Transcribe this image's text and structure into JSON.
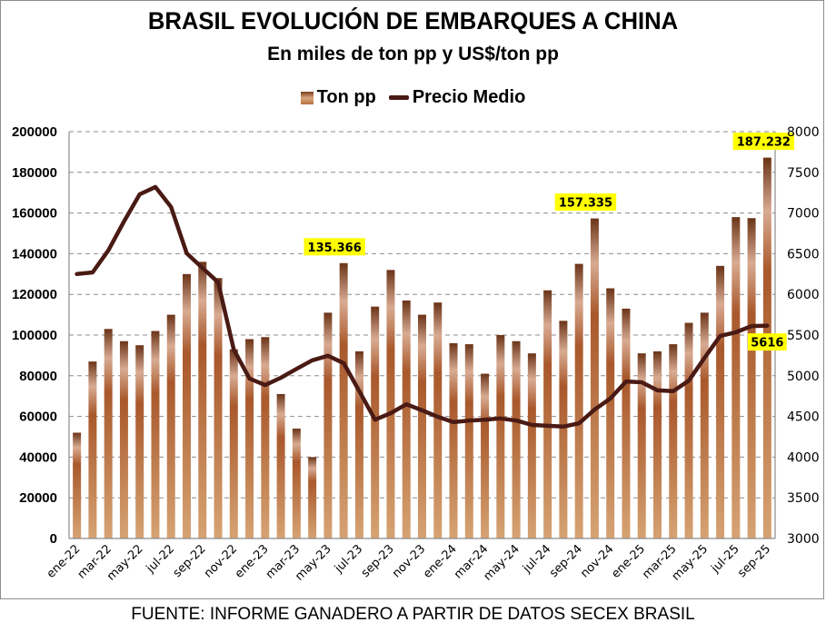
{
  "chart_data": {
    "type": "bar",
    "title": "BRASIL EVOLUCIÓN DE EMBARQUES A CHINA",
    "subtitle": "En miles de ton pp y US$/ton pp",
    "source": "FUENTE: INFORME GANADERO A PARTIR DE DATOS SECEX BRASIL",
    "legend": {
      "position": "top",
      "entries": [
        {
          "name": "Ton pp",
          "kind": "bar"
        },
        {
          "name": "Precio Medio",
          "kind": "line"
        }
      ]
    },
    "colors": {
      "bar_top": "#6b3418",
      "bar_mid_light": "#d8ab92",
      "bar_mid_dark": "#a9582b",
      "bar_bottom": "#d6a373",
      "line": "#4a1a14",
      "label_bg": "#ffff00",
      "grid": "#8c8c8c"
    },
    "categories": [
      "ene-22",
      "feb-22",
      "mar-22",
      "abr-22",
      "may-22",
      "jun-22",
      "jul-22",
      "ago-22",
      "sep-22",
      "oct-22",
      "nov-22",
      "dic-22",
      "ene-23",
      "feb-23",
      "mar-23",
      "abr-23",
      "may-23",
      "jun-23",
      "jul-23",
      "ago-23",
      "sep-23",
      "oct-23",
      "nov-23",
      "dic-23",
      "ene-24",
      "feb-24",
      "mar-24",
      "abr-24",
      "may-24",
      "jun-24",
      "jul-24",
      "ago-24",
      "sep-24",
      "oct-24",
      "nov-24",
      "dic-24",
      "ene-25",
      "feb-25",
      "mar-25",
      "abr-25",
      "may-25",
      "jun-25",
      "jul-25",
      "ago-25",
      "sep-25"
    ],
    "x_tick_labels": [
      "ene-22",
      "mar-22",
      "may-22",
      "jul-22",
      "sep-22",
      "nov-22",
      "ene-23",
      "mar-23",
      "may-23",
      "jul-23",
      "sep-23",
      "nov-23",
      "ene-24",
      "mar-24",
      "may-24",
      "jul-24",
      "sep-24",
      "nov-24",
      "ene-25",
      "mar-25",
      "may-25",
      "jul-25",
      "sep-25"
    ],
    "series": [
      {
        "name": "Ton pp",
        "type": "bar",
        "axis": "left",
        "values": [
          52000,
          87000,
          103000,
          97000,
          95000,
          102000,
          110000,
          130000,
          136000,
          128000,
          93000,
          98000,
          99000,
          71000,
          54000,
          40000,
          111000,
          135366,
          92000,
          114000,
          132000,
          117000,
          110000,
          116000,
          96000,
          95500,
          81000,
          100000,
          97000,
          91000,
          122000,
          107000,
          135000,
          157335,
          123000,
          113000,
          91000,
          92000,
          95500,
          106000,
          111000,
          134000,
          158000,
          157500,
          187232
        ]
      },
      {
        "name": "Precio Medio",
        "type": "line",
        "axis": "right",
        "values": [
          6250,
          6270,
          6540,
          6895,
          7230,
          7320,
          7075,
          6505,
          6325,
          6150,
          5320,
          4965,
          4885,
          4975,
          5085,
          5190,
          5245,
          5155,
          4810,
          4460,
          4540,
          4650,
          4575,
          4495,
          4430,
          4450,
          4460,
          4475,
          4450,
          4395,
          4385,
          4375,
          4415,
          4585,
          4720,
          4930,
          4920,
          4820,
          4810,
          4940,
          5220,
          5490,
          5535,
          5610,
          5616
        ]
      }
    ],
    "data_labels": [
      {
        "series": "Ton pp",
        "category": "jun-23",
        "text": "135.366"
      },
      {
        "series": "Ton pp",
        "category": "oct-24",
        "text": "157.335"
      },
      {
        "series": "Ton pp",
        "category": "sep-25",
        "text": "187.232"
      },
      {
        "series": "Precio Medio",
        "category": "sep-25",
        "text": "5616"
      }
    ],
    "y_left": {
      "min": 0,
      "max": 200000,
      "step": 20000,
      "ticks": [
        "0",
        "20000",
        "40000",
        "60000",
        "80000",
        "100000",
        "120000",
        "140000",
        "160000",
        "180000",
        "200000"
      ]
    },
    "y_right": {
      "min": 3000,
      "max": 8000,
      "step": 500,
      "ticks": [
        "3000",
        "3500",
        "4000",
        "4500",
        "5000",
        "5500",
        "6000",
        "6500",
        "7000",
        "7500",
        "8000"
      ]
    },
    "xlabel": "",
    "ylabel": "",
    "grid": true
  }
}
